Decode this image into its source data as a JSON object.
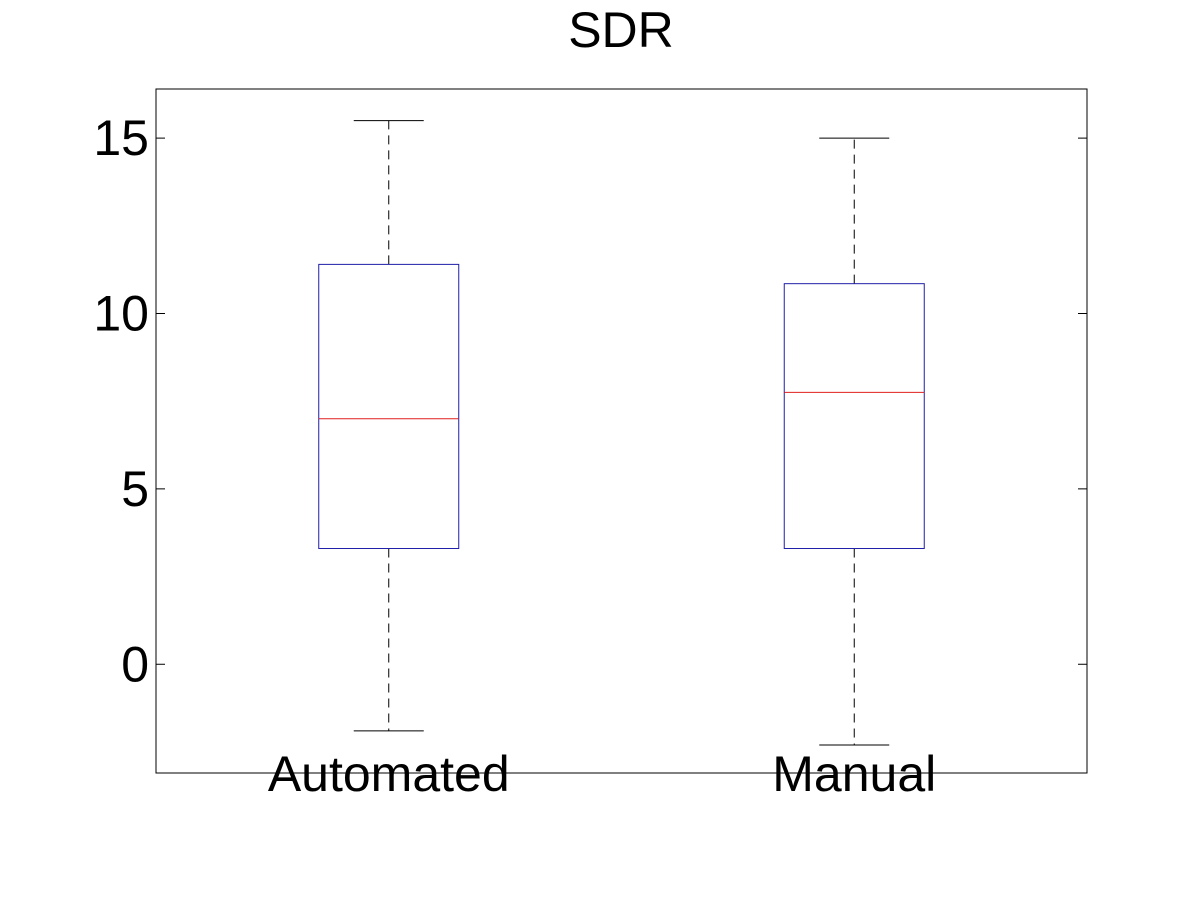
{
  "chart_data": {
    "type": "box",
    "title": "SDR",
    "xlabel": "",
    "ylabel": "",
    "ylim": [
      -3.1,
      16.4
    ],
    "yticks": [
      0,
      5,
      10,
      15
    ],
    "ytick_labels": [
      "0",
      "5",
      "10",
      "15"
    ],
    "grid": false,
    "categories": [
      "Automated",
      "Manual"
    ],
    "boxes": [
      {
        "label": "Automated",
        "whisker_low": -1.9,
        "q1": 3.3,
        "median": 7.0,
        "q3": 11.4,
        "whisker_high": 15.5
      },
      {
        "label": "Manual",
        "whisker_low": -2.3,
        "q1": 3.3,
        "median": 7.75,
        "q3": 10.85,
        "whisker_high": 15.0
      }
    ],
    "colors": {
      "box": "#1f1fa8",
      "median": "#e01f1f",
      "whisker": "#000000",
      "axes": "#000000",
      "background": "#ffffff"
    }
  }
}
